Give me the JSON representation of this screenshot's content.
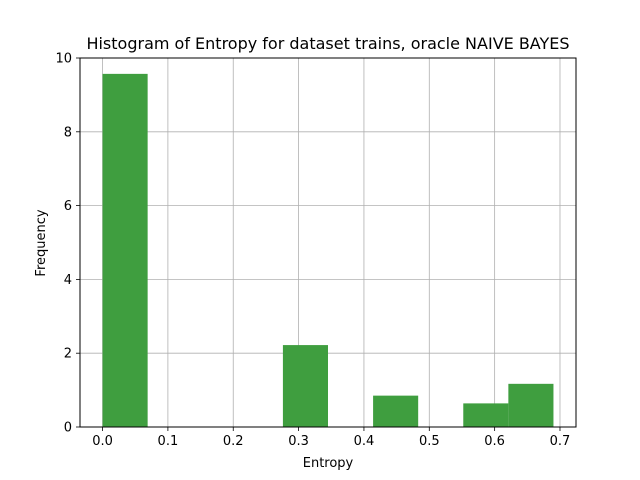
{
  "chart_data": {
    "type": "bar",
    "title": "Histogram of Entropy for dataset trains, oracle NAIVE BAYES",
    "xlabel": "Entropy",
    "ylabel": "Frequency",
    "xlim": [
      -0.0345,
      0.7245
    ],
    "ylim": [
      0,
      10
    ],
    "xticks": [
      0.0,
      0.1,
      0.2,
      0.3,
      0.4,
      0.5,
      0.6,
      0.7
    ],
    "xtick_labels": [
      "0.0",
      "0.1",
      "0.2",
      "0.3",
      "0.4",
      "0.5",
      "0.6",
      "0.7"
    ],
    "yticks": [
      0,
      2,
      4,
      6,
      8,
      10
    ],
    "ytick_labels": [
      "0",
      "2",
      "4",
      "6",
      "8",
      "10"
    ],
    "grid": true,
    "bin_edges": [
      0.0,
      0.069,
      0.138,
      0.207,
      0.276,
      0.345,
      0.414,
      0.483,
      0.552,
      0.621,
      0.69
    ],
    "values": [
      9.57,
      0,
      0,
      0,
      2.22,
      0,
      0.85,
      0,
      0.64,
      1.17
    ],
    "color": "#3f9e3f"
  }
}
